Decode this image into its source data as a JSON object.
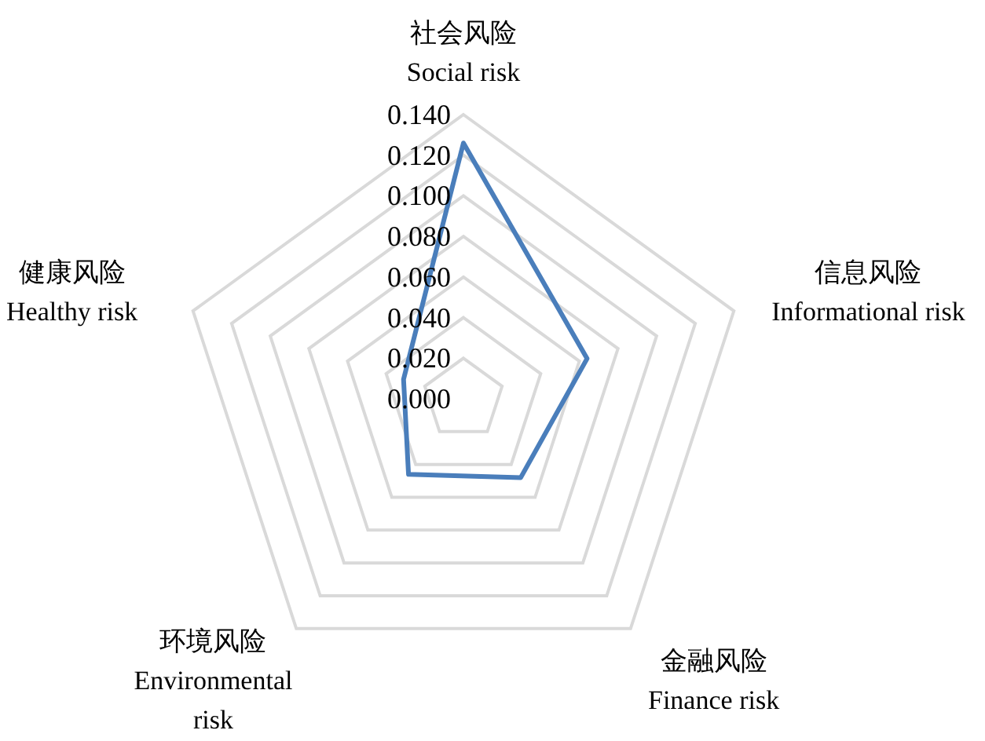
{
  "chart_data": {
    "type": "radar",
    "categories": [
      "社会风险\nSocial risk",
      "信息风险\nInformational risk",
      "金融风险\nFinance risk",
      "环境风险\nEnvironmental\nrisk",
      "健康风险\nHealthy risk"
    ],
    "series": [
      {
        "color": "#4a7ebb",
        "values": [
          0.126,
          0.064,
          0.048,
          0.046,
          0.031
        ]
      }
    ],
    "ylim": [
      0,
      0.14
    ],
    "yticks": [
      {
        "value": 0,
        "label": "0.000"
      },
      {
        "value": 0.02,
        "label": "0.020"
      },
      {
        "value": 0.04,
        "label": "0.040"
      },
      {
        "value": 0.06,
        "label": "0.060"
      },
      {
        "value": 0.08,
        "label": "0.080"
      },
      {
        "value": 0.1,
        "label": "0.100"
      },
      {
        "value": 0.12,
        "label": "0.120"
      },
      {
        "value": 0.14,
        "label": "0.140"
      }
    ],
    "grid": true
  }
}
